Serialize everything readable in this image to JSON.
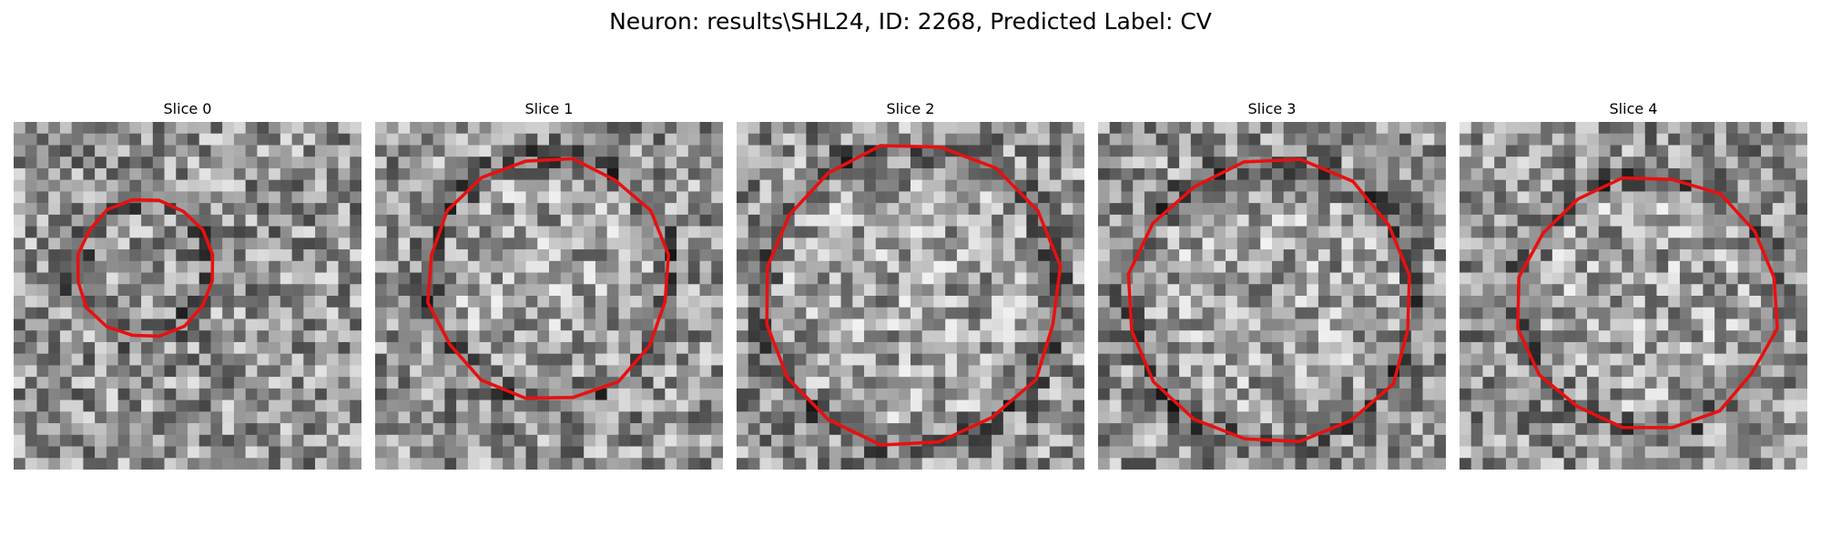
{
  "title": "Neuron: results\\SHL24, ID: 2268, Predicted Label: CV",
  "colors": {
    "contour": "#e81010",
    "background": "#ffffff"
  },
  "slices": [
    {
      "label": "Slice 0",
      "contour_radius": 0.2,
      "contour_center": [
        0.38,
        0.42
      ],
      "ring": false
    },
    {
      "label": "Slice 1",
      "contour_radius": 0.35,
      "contour_center": [
        0.5,
        0.45
      ],
      "ring": true
    },
    {
      "label": "Slice 2",
      "contour_radius": 0.43,
      "contour_center": [
        0.5,
        0.5
      ],
      "ring": true
    },
    {
      "label": "Slice 3",
      "contour_radius": 0.41,
      "contour_center": [
        0.5,
        0.52
      ],
      "ring": true
    },
    {
      "label": "Slice 4",
      "contour_radius": 0.37,
      "contour_center": [
        0.54,
        0.52
      ],
      "ring": true
    }
  ]
}
